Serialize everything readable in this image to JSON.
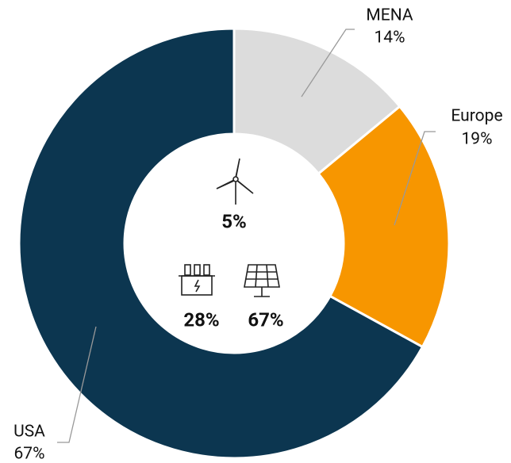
{
  "chart_data": {
    "type": "donut",
    "categories": [
      "MENA",
      "Europe",
      "USA"
    ],
    "values": [
      14,
      19,
      67
    ],
    "value_labels": [
      "14%",
      "19%",
      "67%"
    ],
    "colors": [
      "#dcdcdc",
      "#f79600",
      "#0c3650"
    ],
    "center_labels": [
      "5%",
      "28%",
      "67%"
    ]
  }
}
